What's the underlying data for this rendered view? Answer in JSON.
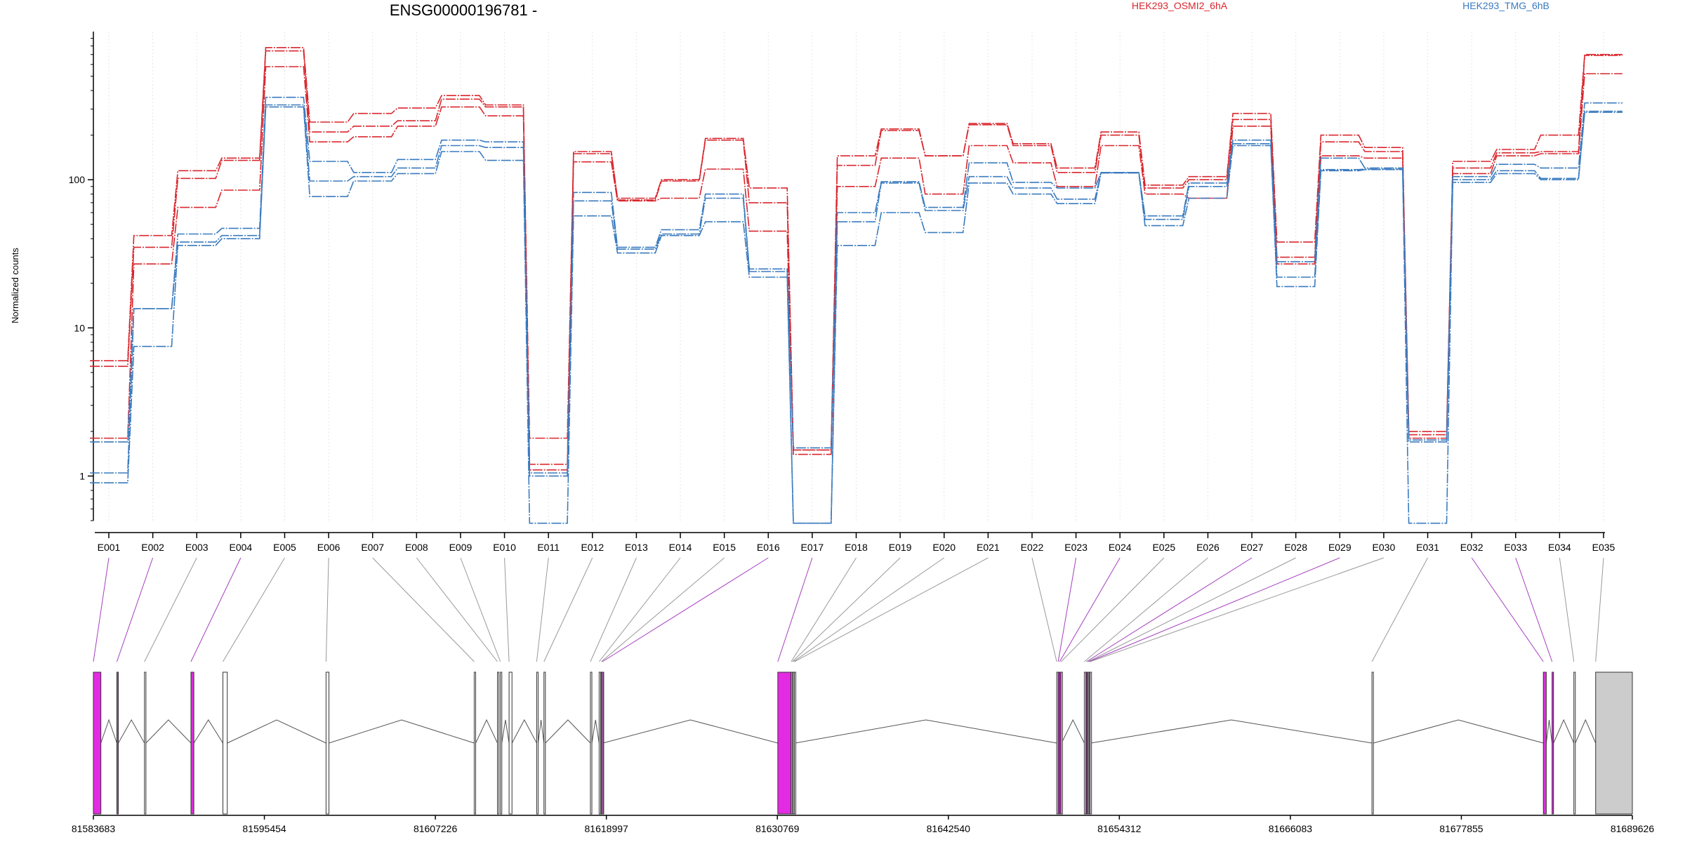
{
  "chart_data": {
    "type": "line",
    "title": "ENSG00000196781 -",
    "ylabel": "Normalized counts",
    "yscale": "log",
    "ylim": [
      0.5,
      1000
    ],
    "yticks": [
      1,
      10,
      100
    ],
    "grid": "vertical",
    "legend_placement": "top",
    "colors": {
      "red": "#d9272e",
      "blue": "#3a7bbf",
      "exon_highlight": "#e22be2",
      "connector_highlight": "#a53fbf",
      "connector_plain": "#999999",
      "last_exon": "#cccccc"
    },
    "categories": [
      "E001",
      "E002",
      "E003",
      "E004",
      "E005",
      "E006",
      "E007",
      "E008",
      "E009",
      "E010",
      "E011",
      "E012",
      "E013",
      "E014",
      "E015",
      "E016",
      "E017",
      "E018",
      "E019",
      "E020",
      "E021",
      "E022",
      "E023",
      "E024",
      "E025",
      "E026",
      "E027",
      "E028",
      "E029",
      "E030",
      "E031",
      "E032",
      "E033",
      "E034",
      "E035"
    ],
    "series": [
      {
        "name": "HEK293_OSMI2_6hA",
        "group": "red",
        "values": [
          6,
          42,
          115,
          140,
          780,
          245,
          280,
          305,
          370,
          320,
          1.8,
          155,
          75,
          100,
          190,
          88,
          1.5,
          145,
          220,
          145,
          240,
          175,
          120,
          210,
          92,
          105,
          280,
          38,
          200,
          165,
          2,
          133,
          160,
          200,
          700
        ]
      },
      {
        "name": "",
        "group": "red",
        "values": [
          5.5,
          35,
          102,
          135,
          740,
          210,
          230,
          250,
          350,
          310,
          1.2,
          150,
          73,
          98,
          185,
          70,
          1.5,
          125,
          215,
          145,
          235,
          170,
          112,
          200,
          88,
          100,
          255,
          30,
          180,
          155,
          1.9,
          120,
          152,
          155,
          690
        ]
      },
      {
        "name": "",
        "group": "red",
        "values": [
          1.8,
          27,
          65,
          85,
          580,
          180,
          195,
          230,
          310,
          270,
          1.1,
          132,
          72,
          75,
          118,
          45,
          1.4,
          90,
          140,
          80,
          170,
          130,
          90,
          170,
          80,
          75,
          230,
          27,
          145,
          140,
          1.8,
          110,
          145,
          150,
          520
        ]
      },
      {
        "name": "HEK293_TMG_6hB",
        "group": "blue",
        "values": [
          1.7,
          13.5,
          43,
          47,
          360,
          133,
          112,
          137,
          185,
          180,
          1.05,
          82,
          35,
          46,
          80,
          25,
          1.55,
          60,
          97,
          65,
          130,
          96,
          88,
          112,
          57,
          95,
          185,
          28,
          140,
          120,
          1.75,
          105,
          127,
          120,
          330
        ]
      },
      {
        "name": "",
        "group": "blue",
        "values": [
          1.05,
          13.5,
          38,
          42,
          320,
          98,
          105,
          120,
          170,
          165,
          1.0,
          72,
          34,
          43,
          75,
          24,
          0.48,
          52,
          95,
          62,
          105,
          88,
          74,
          112,
          54,
          90,
          175,
          22,
          117,
          118,
          1.7,
          100,
          115,
          102,
          290
        ]
      },
      {
        "name": "",
        "group": "blue",
        "values": [
          0.9,
          7.5,
          36,
          40,
          310,
          77,
          98,
          110,
          155,
          135,
          0.48,
          57,
          32,
          42,
          52,
          22,
          0.48,
          36,
          60,
          44,
          95,
          80,
          69,
          111,
          49,
          75,
          170,
          19,
          115,
          117,
          0.48,
          96,
          110,
          100,
          285
        ]
      }
    ],
    "genome_axis": {
      "tick_labels": [
        "81583683",
        "81595454",
        "81607226",
        "81618997",
        "81630769",
        "81642540",
        "81654312",
        "81666083",
        "81677855",
        "81689626"
      ],
      "range": [
        81583683,
        81689626
      ]
    },
    "exon_coords": [
      [
        81583683,
        81584200
      ],
      [
        81585300,
        81585400
      ],
      [
        81587200,
        81587300
      ],
      [
        81590400,
        81590600
      ],
      [
        81592600,
        81592900
      ],
      [
        81599700,
        81599900
      ],
      [
        81609900,
        81610000
      ],
      [
        81611500,
        81611600
      ],
      [
        81611700,
        81611800
      ],
      [
        81612300,
        81612500
      ],
      [
        81614200,
        81614300
      ],
      [
        81614700,
        81614800
      ],
      [
        81617900,
        81618000
      ],
      [
        81618500,
        81618600
      ],
      [
        81618650,
        81618700
      ],
      [
        81618720,
        81618760
      ],
      [
        81630800,
        81631700
      ],
      [
        81631720,
        81631770
      ],
      [
        81631800,
        81631850
      ],
      [
        81631870,
        81631920
      ],
      [
        81631940,
        81631990
      ],
      [
        81650000,
        81650020
      ],
      [
        81650100,
        81650150
      ],
      [
        81650200,
        81650240
      ],
      [
        81650300,
        81650330
      ],
      [
        81651900,
        81652000
      ],
      [
        81652050,
        81652100
      ],
      [
        81652150,
        81652190
      ],
      [
        81652220,
        81652260
      ],
      [
        81652300,
        81652340
      ],
      [
        81671700,
        81671800
      ],
      [
        81683500,
        81683700
      ],
      [
        81684100,
        81684200
      ],
      [
        81685600,
        81685700
      ],
      [
        81687100,
        81689626
      ]
    ],
    "highlighted_exons": [
      "E001",
      "E002",
      "E004",
      "E016",
      "E017",
      "E023",
      "E024",
      "E027",
      "E029",
      "E032",
      "E033"
    ]
  }
}
